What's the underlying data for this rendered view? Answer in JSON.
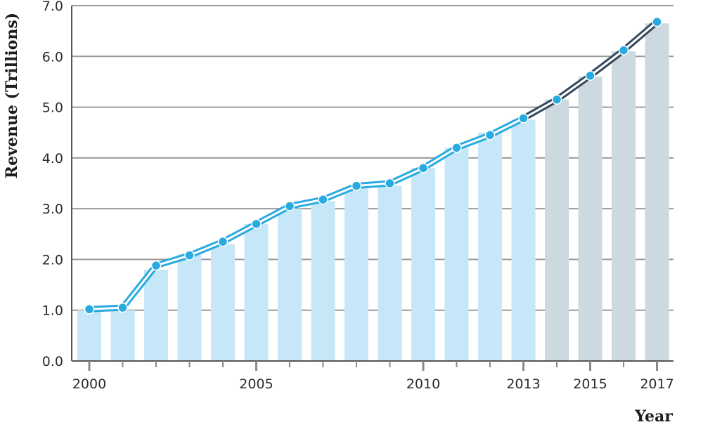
{
  "chart_data": {
    "type": "bar",
    "title": "",
    "xlabel": "Year",
    "ylabel": "Revenue (Trillions)",
    "ylim": [
      0,
      7
    ],
    "y_ticks": [
      "0.0",
      "1.0",
      "2.0",
      "3.0",
      "4.0",
      "5.0",
      "6.0",
      "7.0"
    ],
    "x_tick_labels": [
      "2000",
      "2005",
      "2010",
      "2013",
      "2015",
      "2017"
    ],
    "categories": [
      "2000",
      "2001",
      "2002",
      "2003",
      "2004",
      "2005",
      "2006",
      "2007",
      "2008",
      "2009",
      "2010",
      "2011",
      "2012",
      "2013",
      "2014",
      "2015",
      "2016",
      "2017"
    ],
    "values": [
      1.0,
      1.0,
      1.8,
      2.1,
      2.3,
      2.7,
      3.0,
      3.15,
      3.4,
      3.45,
      3.8,
      4.2,
      4.5,
      4.75,
      5.15,
      5.6,
      6.1,
      6.65
    ],
    "line_values": [
      1.02,
      1.05,
      1.88,
      2.08,
      2.35,
      2.7,
      3.05,
      3.18,
      3.45,
      3.5,
      3.8,
      4.2,
      4.45,
      4.78,
      5.15,
      5.62,
      6.12,
      6.68
    ],
    "grid": true,
    "colors": {
      "bar_actual": "#c6e7f8",
      "bar_projected": "#ccd9e1",
      "line": "#29aae1",
      "line_projected": "#34495e",
      "grid": "#9a9a9a",
      "axis": "#555555"
    }
  }
}
